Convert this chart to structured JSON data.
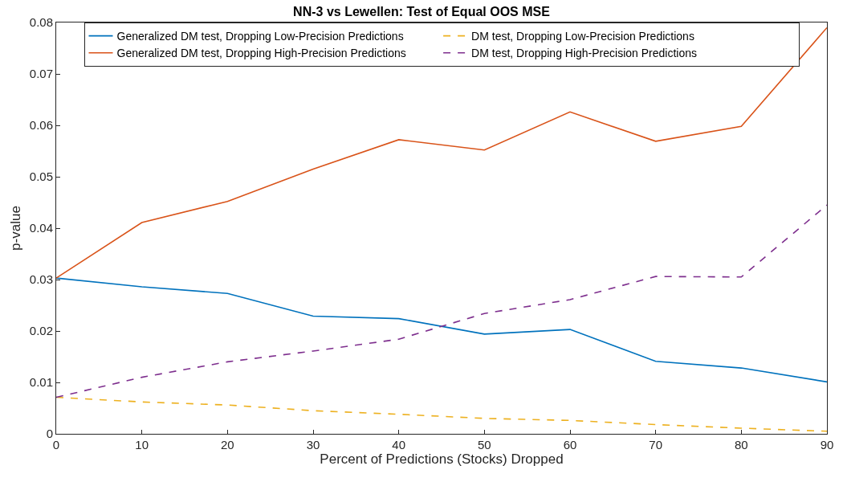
{
  "chart_data": {
    "type": "line",
    "title": "NN-3 vs Lewellen: Test of Equal OOS MSE",
    "xlabel": "Percent of Predictions (Stocks) Dropped",
    "ylabel": "p-value",
    "x": [
      0,
      10,
      20,
      30,
      40,
      50,
      60,
      70,
      80,
      90
    ],
    "series": [
      {
        "name": "Generalized DM test, Dropping Low-Precision Predictions",
        "color": "#0072bd",
        "line_style": "solid",
        "values": [
          0.0303,
          0.0286,
          0.0273,
          0.0229,
          0.0224,
          0.0194,
          0.0203,
          0.0141,
          0.0128,
          0.0101
        ]
      },
      {
        "name": "DM test, Dropping Low-Precision Predictions",
        "color": "#edb120",
        "line_style": "dashed",
        "values": [
          0.0071,
          0.0062,
          0.0056,
          0.0045,
          0.0038,
          0.003,
          0.0026,
          0.0018,
          0.0011,
          0.0005
        ]
      },
      {
        "name": "Generalized DM test, Dropping High-Precision Predictions",
        "color": "#d95319",
        "line_style": "solid",
        "values": [
          0.0303,
          0.0411,
          0.0452,
          0.0515,
          0.0572,
          0.0552,
          0.0626,
          0.0569,
          0.0598,
          0.079
        ]
      },
      {
        "name": "DM test, Dropping High-Precision Predictions",
        "color": "#7e2f8e",
        "line_style": "dashed",
        "values": [
          0.0071,
          0.011,
          0.014,
          0.0161,
          0.0184,
          0.0234,
          0.0261,
          0.0306,
          0.0305,
          0.0445
        ]
      }
    ],
    "xlim": [
      0,
      90
    ],
    "xticks": [
      0,
      10,
      20,
      30,
      40,
      50,
      60,
      70,
      80,
      90
    ],
    "ylim": [
      0,
      0.08
    ],
    "yticks": [
      0,
      0.01,
      0.02,
      0.03,
      0.04,
      0.05,
      0.06,
      0.07,
      0.08
    ],
    "grid": false,
    "legend": "top",
    "marker": "none"
  }
}
